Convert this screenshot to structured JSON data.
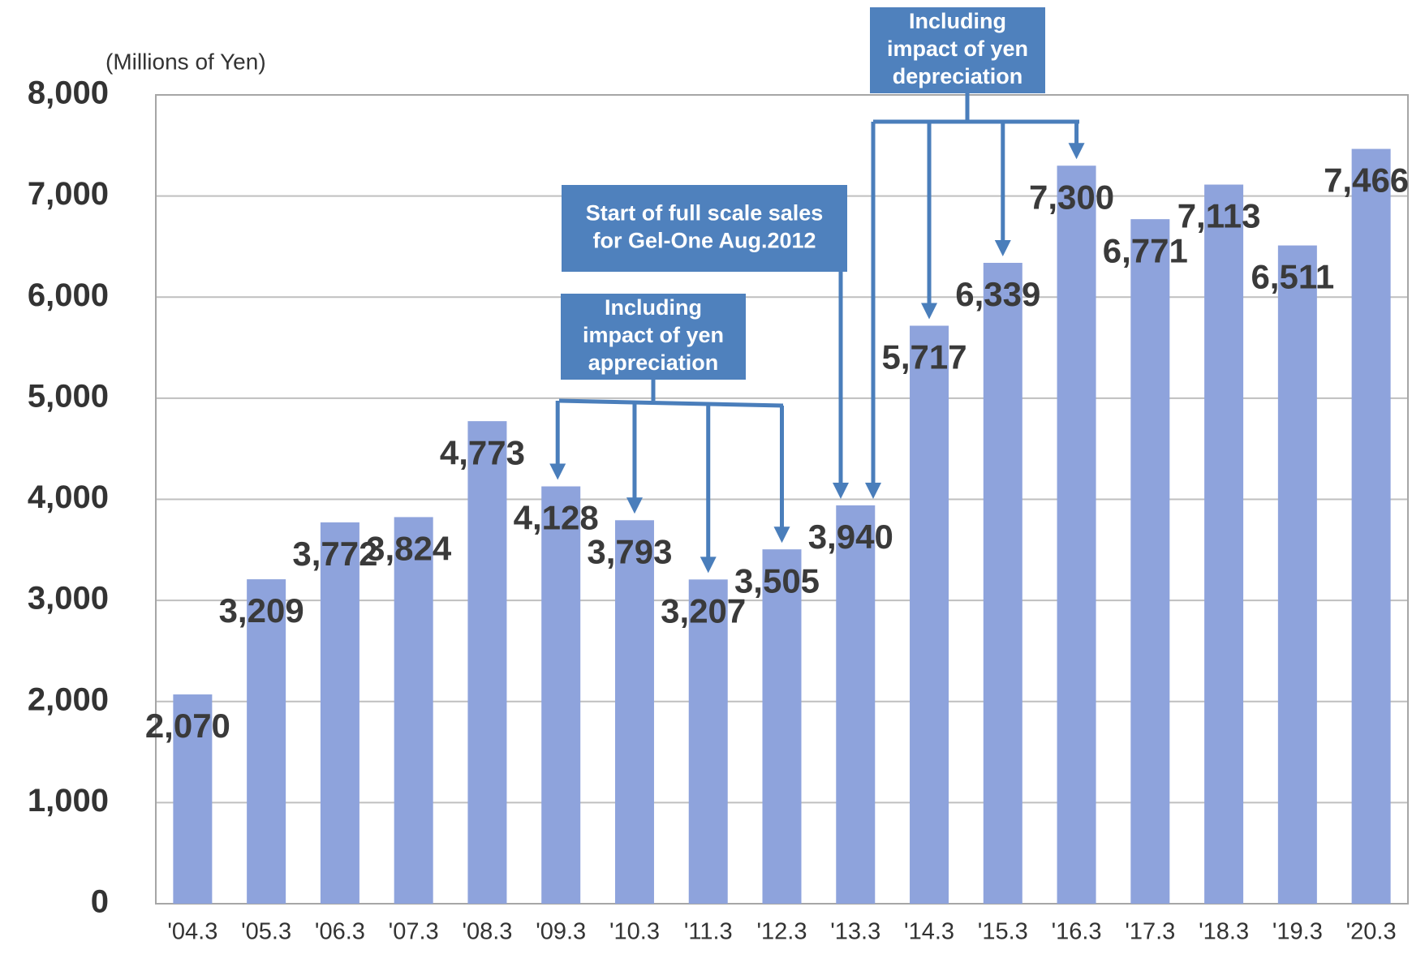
{
  "chart_data": {
    "type": "bar",
    "y_axis_label": "(Millions of Yen)",
    "categories": [
      "'04.3",
      "'05.3",
      "'06.3",
      "'07.3",
      "'08.3",
      "'09.3",
      "'10.3",
      "'11.3",
      "'12.3",
      "'13.3",
      "'14.3",
      "'15.3",
      "'16.3",
      "'17.3",
      "'18.3",
      "'19.3",
      "'20.3"
    ],
    "values": [
      2070,
      3209,
      3772,
      3824,
      4773,
      4128,
      3793,
      3207,
      3505,
      3940,
      5717,
      6339,
      7300,
      6771,
      7113,
      6511,
      7466
    ],
    "value_labels": [
      "2,070",
      "3,209",
      "3,772",
      "3,824",
      "4,773",
      "4,128",
      "3,793",
      "3,207",
      "3,505",
      "3,940",
      "5,717",
      "6,339",
      "7,300",
      "6,771",
      "7,113",
      "6,511",
      "7,466"
    ],
    "color": "#8ea3dc",
    "ylim": [
      0,
      8000
    ],
    "yticks": [
      0,
      {
        "value": 1000,
        "label": "1,000"
      },
      {
        "value": 2000,
        "label": "2,000"
      },
      {
        "value": 3000,
        "label": "3,000"
      },
      {
        "value": 4000,
        "label": "4,000"
      },
      {
        "value": 5000,
        "label": "5,000"
      },
      {
        "value": 6000,
        "label": "6,000"
      },
      {
        "value": 7000,
        "label": "7,000"
      },
      {
        "value": 8000,
        "label": "8,000"
      }
    ],
    "grid": true,
    "annotations": [
      {
        "lines": [
          "Including",
          "impact of yen",
          "appreciation"
        ]
      },
      {
        "lines": [
          "Start of full scale sales",
          "for Gel-One Aug.2012"
        ]
      },
      {
        "lines": [
          "Including",
          "impact of yen",
          "depreciation"
        ]
      }
    ]
  }
}
